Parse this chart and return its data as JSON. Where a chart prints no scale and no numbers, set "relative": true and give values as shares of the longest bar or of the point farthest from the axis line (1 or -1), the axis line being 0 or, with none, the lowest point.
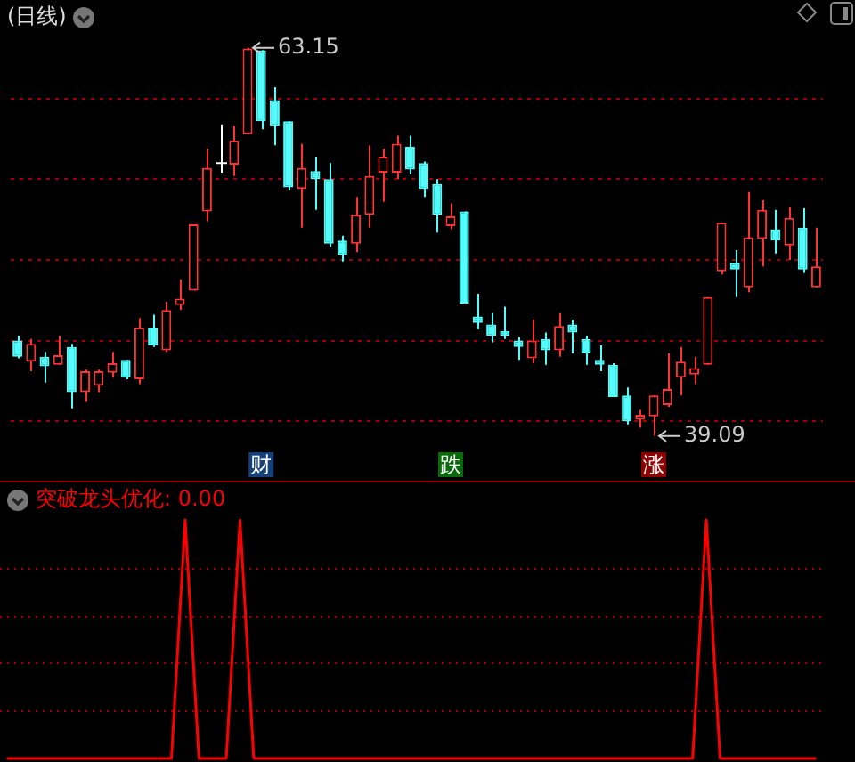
{
  "chart_data": [
    {
      "type": "candlestick",
      "title": "(日线)",
      "categories": [
        null,
        null,
        null,
        null,
        null,
        null,
        null,
        null,
        null,
        null,
        null,
        null,
        null,
        null,
        null,
        null,
        null,
        null,
        null,
        null,
        null,
        null,
        null,
        null,
        null,
        null,
        null,
        null,
        null,
        null,
        null,
        null,
        null,
        null,
        null,
        null,
        null,
        null,
        null,
        null,
        null,
        null,
        null,
        null,
        null,
        null,
        null,
        null,
        null,
        null,
        null,
        null,
        null,
        null,
        null,
        null,
        null,
        null,
        null,
        null
      ],
      "ohlc": [
        [
          45.0,
          45.3,
          43.9,
          44.0
        ],
        [
          43.7,
          45.1,
          43.1,
          44.8
        ],
        [
          44.0,
          44.3,
          42.4,
          43.4
        ],
        [
          43.5,
          45.3,
          43.5,
          44.1
        ],
        [
          44.6,
          44.8,
          40.8,
          41.8
        ],
        [
          41.8,
          43.2,
          41.2,
          43.1
        ],
        [
          42.2,
          43.2,
          41.8,
          43.1
        ],
        [
          43.0,
          44.3,
          42.7,
          43.6
        ],
        [
          43.8,
          43.8,
          42.6,
          42.7
        ],
        [
          42.6,
          46.4,
          42.3,
          45.8
        ],
        [
          45.8,
          46.6,
          44.6,
          44.7
        ],
        [
          44.4,
          47.4,
          44.3,
          46.9
        ],
        [
          47.2,
          48.8,
          46.9,
          47.6
        ],
        [
          48.1,
          52.2,
          48.1,
          52.2
        ],
        [
          53.0,
          56.9,
          52.4,
          55.7
        ],
        [
          56.0,
          58.4,
          55.4,
          56.0
        ],
        [
          55.9,
          58.3,
          55.2,
          57.4
        ],
        [
          57.8,
          63.15,
          57.8,
          63.1
        ],
        [
          63.0,
          63.0,
          58.1,
          58.6
        ],
        [
          59.9,
          60.7,
          57.1,
          58.3
        ],
        [
          58.6,
          58.6,
          54.3,
          54.5
        ],
        [
          54.4,
          57.2,
          52.0,
          55.7
        ],
        [
          55.5,
          56.4,
          53.1,
          55.0
        ],
        [
          55.0,
          56.0,
          50.8,
          51.0
        ],
        [
          51.2,
          51.5,
          49.9,
          50.3
        ],
        [
          51.0,
          53.9,
          50.5,
          52.8
        ],
        [
          52.8,
          57.1,
          52.0,
          55.2
        ],
        [
          55.4,
          56.9,
          53.6,
          56.4
        ],
        [
          55.4,
          57.7,
          55.0,
          57.2
        ],
        [
          57.0,
          57.7,
          55.3,
          55.6
        ],
        [
          56.0,
          56.1,
          53.9,
          54.4
        ],
        [
          54.7,
          55.0,
          51.7,
          52.8
        ],
        [
          52.1,
          53.5,
          51.9,
          52.7
        ],
        [
          53.0,
          53.0,
          47.3,
          47.3
        ],
        [
          46.5,
          47.9,
          45.7,
          46.1
        ],
        [
          46.0,
          46.7,
          44.9,
          45.3
        ],
        [
          45.6,
          47.1,
          45.1,
          45.3
        ],
        [
          45.0,
          45.2,
          43.8,
          44.6
        ],
        [
          43.9,
          46.3,
          43.6,
          45.0
        ],
        [
          45.1,
          45.5,
          43.5,
          44.4
        ],
        [
          44.4,
          46.7,
          44.0,
          45.9
        ],
        [
          46.0,
          46.3,
          44.2,
          45.5
        ],
        [
          45.1,
          45.3,
          43.5,
          44.2
        ],
        [
          43.8,
          44.7,
          43.1,
          43.5
        ],
        [
          43.5,
          43.6,
          41.5,
          41.5
        ],
        [
          41.6,
          42.1,
          39.8,
          40.0
        ],
        [
          40.1,
          40.7,
          39.6,
          40.4
        ],
        [
          40.3,
          41.6,
          39.09,
          41.6
        ],
        [
          41.0,
          44.2,
          40.9,
          42.0
        ],
        [
          42.7,
          44.6,
          41.6,
          43.7
        ],
        [
          42.9,
          44.0,
          42.3,
          43.3
        ],
        [
          43.5,
          47.7,
          43.5,
          47.7
        ],
        [
          49.3,
          52.3,
          49.1,
          52.3
        ],
        [
          49.8,
          50.6,
          47.7,
          49.4
        ],
        [
          48.3,
          54.2,
          48.0,
          51.4
        ],
        [
          51.3,
          53.7,
          49.6,
          53.1
        ],
        [
          51.9,
          53.1,
          50.4,
          51.2
        ],
        [
          50.9,
          53.3,
          50.0,
          52.6
        ],
        [
          52.0,
          53.2,
          49.2,
          49.4
        ],
        [
          48.3,
          52.0,
          48.3,
          49.6
        ]
      ],
      "colors": [
        "#54fcfc",
        "#ff3232",
        "#54fcfc",
        "#ff3232",
        "#54fcfc",
        "#ff3232",
        "#ff3232",
        "#ff3232",
        "#54fcfc",
        "#ff3232",
        "#54fcfc",
        "#ff3232",
        "#ff3232",
        "#ff3232",
        "#ff3232",
        "#ffffff",
        "#ff3232",
        "#ff3232",
        "#54fcfc",
        "#54fcfc",
        "#54fcfc",
        "#ff3232",
        "#54fcfc",
        "#54fcfc",
        "#54fcfc",
        "#ff3232",
        "#ff3232",
        "#ff3232",
        "#ff3232",
        "#54fcfc",
        "#54fcfc",
        "#54fcfc",
        "#ff3232",
        "#54fcfc",
        "#54fcfc",
        "#54fcfc",
        "#54fcfc",
        "#54fcfc",
        "#ff3232",
        "#54fcfc",
        "#ff3232",
        "#54fcfc",
        "#54fcfc",
        "#54fcfc",
        "#54fcfc",
        "#54fcfc",
        "#ff3232",
        "#ff3232",
        "#ff3232",
        "#ff3232",
        "#ff3232",
        "#ff3232",
        "#ff3232",
        "#54fcfc",
        "#ff3232",
        "#ff3232",
        "#54fcfc",
        "#ff3232",
        "#54fcfc",
        "#ff3232"
      ],
      "yticks": [
        {
          "value": 40,
          "label": null
        },
        {
          "value": 45,
          "label": null
        },
        {
          "value": 50,
          "label": null
        },
        {
          "value": 55,
          "label": null
        },
        {
          "value": 60,
          "label": null
        }
      ],
      "grid": "y",
      "annotations": [
        "63.15",
        "39.09",
        "财",
        "跌",
        "涨"
      ]
    },
    {
      "type": "line",
      "relative": true,
      "categories": [
        null,
        null,
        null,
        null,
        null,
        null,
        null,
        null,
        null,
        null,
        null,
        null,
        null,
        null,
        null,
        null,
        null,
        null,
        null,
        null,
        null,
        null,
        null,
        null,
        null,
        null,
        null,
        null,
        null,
        null,
        null,
        null,
        null,
        null,
        null,
        null,
        null,
        null,
        null,
        null,
        null,
        null,
        null,
        null,
        null,
        null,
        null,
        null,
        null,
        null,
        null,
        null,
        null,
        null,
        null,
        null,
        null,
        null,
        null,
        null
      ],
      "series": [
        {
          "name": "突破龙头优化:",
          "color": "#ff0000",
          "values": [
            0,
            0,
            0,
            0,
            0,
            0,
            0,
            0,
            0,
            0,
            0,
            0,
            0,
            1,
            0,
            0,
            0,
            1,
            0,
            0,
            0,
            0,
            0,
            0,
            0,
            0,
            0,
            0,
            0,
            0,
            0,
            0,
            0,
            0,
            0,
            0,
            0,
            0,
            0,
            0,
            0,
            0,
            0,
            0,
            0,
            0,
            0,
            0,
            0,
            0,
            0,
            1,
            0,
            0,
            0,
            0,
            0,
            0,
            0,
            0
          ]
        }
      ],
      "annotations": [
        "0.00"
      ],
      "ref_lines": [
        {
          "axis": "y",
          "value": 0.2,
          "color": "#a00000",
          "line_style": "dotted"
        },
        {
          "axis": "y",
          "value": 0.4,
          "color": "#a00000",
          "line_style": "dotted"
        },
        {
          "axis": "y",
          "value": 0.6,
          "color": "#a00000",
          "line_style": "dotted"
        },
        {
          "axis": "y",
          "value": 0.8,
          "color": "#a00000",
          "line_style": "dotted"
        }
      ],
      "marker": "none"
    }
  ]
}
